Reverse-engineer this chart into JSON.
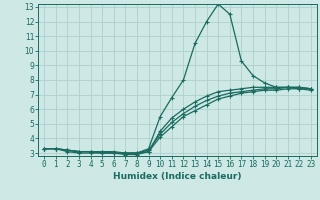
{
  "title": "",
  "xlabel": "Humidex (Indice chaleur)",
  "ylabel": "",
  "xlim": [
    -0.5,
    23.5
  ],
  "ylim": [
    2.8,
    13.2
  ],
  "xticks": [
    0,
    1,
    2,
    3,
    4,
    5,
    6,
    7,
    8,
    9,
    10,
    11,
    12,
    13,
    14,
    15,
    16,
    17,
    18,
    19,
    20,
    21,
    22,
    23
  ],
  "yticks": [
    3,
    4,
    5,
    6,
    7,
    8,
    9,
    10,
    11,
    12,
    13
  ],
  "bg_color": "#cde8e5",
  "line_color": "#1a6b60",
  "grid_color": "#aed0cc",
  "line1_x": [
    0,
    1,
    2,
    3,
    4,
    5,
    6,
    7,
    8,
    9,
    10,
    11,
    12,
    13,
    14,
    15,
    16,
    17,
    18,
    19,
    20,
    21,
    22,
    23
  ],
  "line1_y": [
    3.3,
    3.3,
    3.2,
    3.1,
    3.1,
    3.1,
    3.1,
    3.0,
    3.0,
    3.3,
    5.5,
    6.8,
    8.0,
    10.5,
    12.0,
    13.2,
    12.5,
    9.3,
    8.3,
    7.8,
    7.5,
    7.5,
    7.4,
    7.3
  ],
  "line2_x": [
    0,
    1,
    2,
    3,
    4,
    5,
    6,
    7,
    8,
    9,
    10,
    11,
    12,
    13,
    14,
    15,
    16,
    17,
    18,
    19,
    20,
    21,
    22,
    23
  ],
  "line2_y": [
    3.3,
    3.3,
    3.1,
    3.0,
    3.0,
    3.0,
    3.0,
    2.9,
    2.9,
    3.1,
    4.5,
    5.4,
    6.0,
    6.5,
    6.9,
    7.2,
    7.3,
    7.4,
    7.5,
    7.5,
    7.5,
    7.5,
    7.5,
    7.4
  ],
  "line3_x": [
    0,
    1,
    2,
    3,
    4,
    5,
    6,
    7,
    8,
    9,
    10,
    11,
    12,
    13,
    14,
    15,
    16,
    17,
    18,
    19,
    20,
    21,
    22,
    23
  ],
  "line3_y": [
    3.3,
    3.3,
    3.2,
    3.1,
    3.1,
    3.1,
    3.0,
    3.0,
    3.0,
    3.2,
    4.3,
    5.1,
    5.7,
    6.2,
    6.6,
    6.9,
    7.1,
    7.2,
    7.3,
    7.4,
    7.4,
    7.5,
    7.5,
    7.4
  ],
  "line4_x": [
    0,
    1,
    2,
    3,
    4,
    5,
    6,
    7,
    8,
    9,
    10,
    11,
    12,
    13,
    14,
    15,
    16,
    17,
    18,
    19,
    20,
    21,
    22,
    23
  ],
  "line4_y": [
    3.3,
    3.3,
    3.2,
    3.1,
    3.1,
    3.0,
    3.0,
    3.0,
    3.0,
    3.1,
    4.1,
    4.8,
    5.5,
    5.9,
    6.3,
    6.7,
    6.9,
    7.1,
    7.2,
    7.3,
    7.3,
    7.4,
    7.4,
    7.4
  ],
  "xlabel_fontsize": 6.5,
  "tick_fontsize": 5.5,
  "linewidth": 0.9,
  "markersize": 3.5
}
